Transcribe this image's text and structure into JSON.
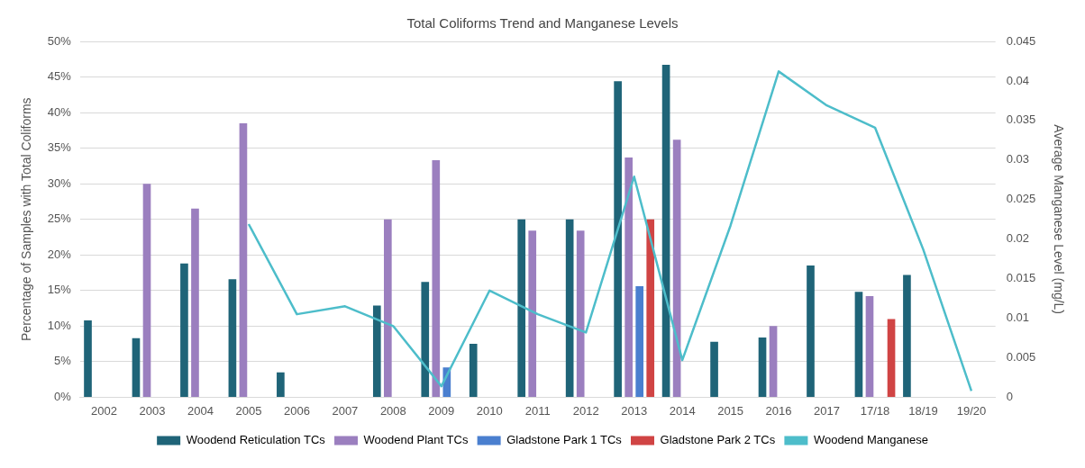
{
  "chart_data": {
    "type": "bar",
    "title": "Total Coliforms Trend and Manganese Levels",
    "categories": [
      "2002",
      "2003",
      "2004",
      "2005",
      "2006",
      "2007",
      "2008",
      "2009",
      "2010",
      "2011",
      "2012",
      "2013",
      "2014",
      "2015",
      "2016",
      "2017",
      "17/18",
      "18/19",
      "19/20"
    ],
    "series": [
      {
        "name": "Woodend Reticulation TCs",
        "color": "#1f6478",
        "values": [
          10.8,
          8.3,
          18.8,
          16.6,
          3.5,
          null,
          12.9,
          16.2,
          7.5,
          25,
          25,
          44.4,
          46.7,
          7.8,
          8.4,
          18.5,
          14.8,
          17.2,
          null
        ]
      },
      {
        "name": "Woodend Plant TCs",
        "color": "#9b7fbf",
        "values": [
          null,
          30,
          26.5,
          38.5,
          null,
          null,
          25,
          33.3,
          null,
          23.4,
          23.4,
          33.7,
          36.2,
          null,
          10,
          null,
          14.2,
          null,
          null
        ]
      },
      {
        "name": "Gladstone Park 1 TCs",
        "color": "#4a7fcf",
        "values": [
          null,
          null,
          null,
          null,
          null,
          null,
          null,
          4.2,
          null,
          null,
          null,
          15.6,
          null,
          null,
          null,
          null,
          null,
          null,
          null
        ]
      },
      {
        "name": "Gladstone Park 2 TCs",
        "color": "#d04444",
        "values": [
          null,
          null,
          null,
          null,
          null,
          null,
          null,
          null,
          null,
          null,
          null,
          25,
          null,
          null,
          null,
          null,
          11,
          null,
          null
        ]
      },
      {
        "name": "Woodend Manganese",
        "type": "line",
        "axis": "y2",
        "color": "#4dbdca",
        "values": [
          null,
          null,
          null,
          0.0219,
          0.0105,
          0.0115,
          0.009,
          0.0014,
          0.0135,
          0.0105,
          0.0082,
          0.0279,
          0.0047,
          0.0217,
          0.0412,
          0.0369,
          0.0341,
          0.0187,
          0.0008
        ]
      }
    ],
    "ylabel": "Percentage of Samples with Total Coliforms",
    "y2label": "Average Manganese Level (mg/L)",
    "ylim": [
      0,
      50
    ],
    "yticks": [
      {
        "value": 0,
        "label": "0%"
      },
      {
        "value": 5,
        "label": "5%"
      },
      {
        "value": 10,
        "label": "10%"
      },
      {
        "value": 15,
        "label": "15%"
      },
      {
        "value": 20,
        "label": "20%"
      },
      {
        "value": 25,
        "label": "25%"
      },
      {
        "value": 30,
        "label": "30%"
      },
      {
        "value": 35,
        "label": "35%"
      },
      {
        "value": 40,
        "label": "40%"
      },
      {
        "value": 45,
        "label": "45%"
      },
      {
        "value": 50,
        "label": "50%"
      }
    ],
    "y2lim": [
      0,
      0.045
    ],
    "y2ticks": [
      0,
      0.005,
      0.01,
      0.015,
      0.02,
      0.025,
      0.03,
      0.035,
      0.04,
      0.045
    ],
    "grid": "y",
    "legend": "bottom",
    "marker": "none"
  }
}
